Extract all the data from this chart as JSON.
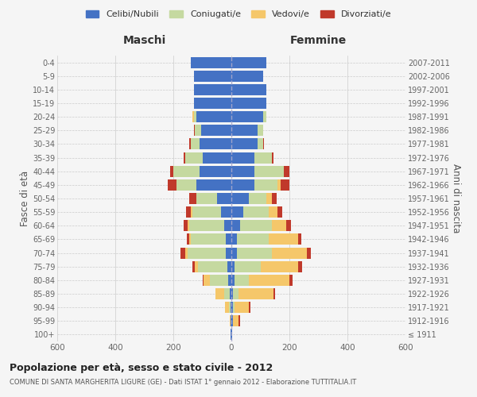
{
  "age_groups": [
    "100+",
    "95-99",
    "90-94",
    "85-89",
    "80-84",
    "75-79",
    "70-74",
    "65-69",
    "60-64",
    "55-59",
    "50-54",
    "45-49",
    "40-44",
    "35-39",
    "30-34",
    "25-29",
    "20-24",
    "15-19",
    "10-14",
    "5-9",
    "0-4"
  ],
  "birth_years": [
    "≤ 1911",
    "1912-1916",
    "1917-1921",
    "1922-1926",
    "1927-1931",
    "1932-1936",
    "1937-1941",
    "1942-1946",
    "1947-1951",
    "1952-1956",
    "1957-1961",
    "1962-1966",
    "1967-1971",
    "1972-1976",
    "1977-1981",
    "1982-1986",
    "1987-1991",
    "1992-1996",
    "1997-2001",
    "2002-2006",
    "2007-2011"
  ],
  "colors": {
    "celibi": "#4472C4",
    "coniugati": "#c5d9a0",
    "vedovi": "#f5c76a",
    "divorziati": "#c0392b"
  },
  "males": {
    "celibi": [
      2,
      2,
      3,
      5,
      10,
      15,
      20,
      20,
      25,
      35,
      50,
      120,
      110,
      100,
      110,
      105,
      120,
      130,
      130,
      130,
      140
    ],
    "coniugati": [
      0,
      0,
      5,
      20,
      65,
      100,
      130,
      120,
      120,
      100,
      70,
      70,
      90,
      60,
      30,
      20,
      10,
      0,
      0,
      0,
      0
    ],
    "vedovi": [
      0,
      3,
      15,
      30,
      20,
      10,
      10,
      5,
      5,
      5,
      0,
      0,
      0,
      0,
      0,
      0,
      3,
      0,
      0,
      0,
      0
    ],
    "divorziati": [
      0,
      0,
      0,
      0,
      5,
      10,
      15,
      8,
      15,
      15,
      25,
      30,
      10,
      5,
      5,
      3,
      0,
      0,
      0,
      0,
      0
    ]
  },
  "females": {
    "celibi": [
      2,
      5,
      5,
      5,
      10,
      10,
      20,
      20,
      30,
      40,
      60,
      80,
      80,
      80,
      90,
      90,
      110,
      120,
      120,
      110,
      120
    ],
    "coniugati": [
      0,
      0,
      5,
      20,
      50,
      90,
      120,
      110,
      110,
      90,
      60,
      80,
      100,
      60,
      20,
      20,
      10,
      0,
      0,
      0,
      0
    ],
    "vedovi": [
      2,
      20,
      50,
      120,
      140,
      130,
      120,
      100,
      50,
      30,
      20,
      10,
      0,
      0,
      0,
      0,
      0,
      0,
      0,
      0,
      0
    ],
    "divorziati": [
      0,
      5,
      5,
      5,
      10,
      15,
      15,
      10,
      15,
      15,
      15,
      30,
      20,
      5,
      3,
      0,
      0,
      0,
      0,
      0,
      0
    ]
  },
  "title": "Popolazione per età, sesso e stato civile - 2012",
  "subtitle": "COMUNE DI SANTA MARGHERITA LIGURE (GE) - Dati ISTAT 1° gennaio 2012 - Elaborazione TUTTITALIA.IT",
  "ylabel_left": "Fasce di età",
  "ylabel_right": "Anni di nascita",
  "xlabel_left": "Maschi",
  "xlabel_right": "Femmine",
  "xlim": 600,
  "background_color": "#f5f5f5",
  "legend_labels": [
    "Celibi/Nubili",
    "Coniugati/e",
    "Vedovi/e",
    "Divorziati/e"
  ]
}
